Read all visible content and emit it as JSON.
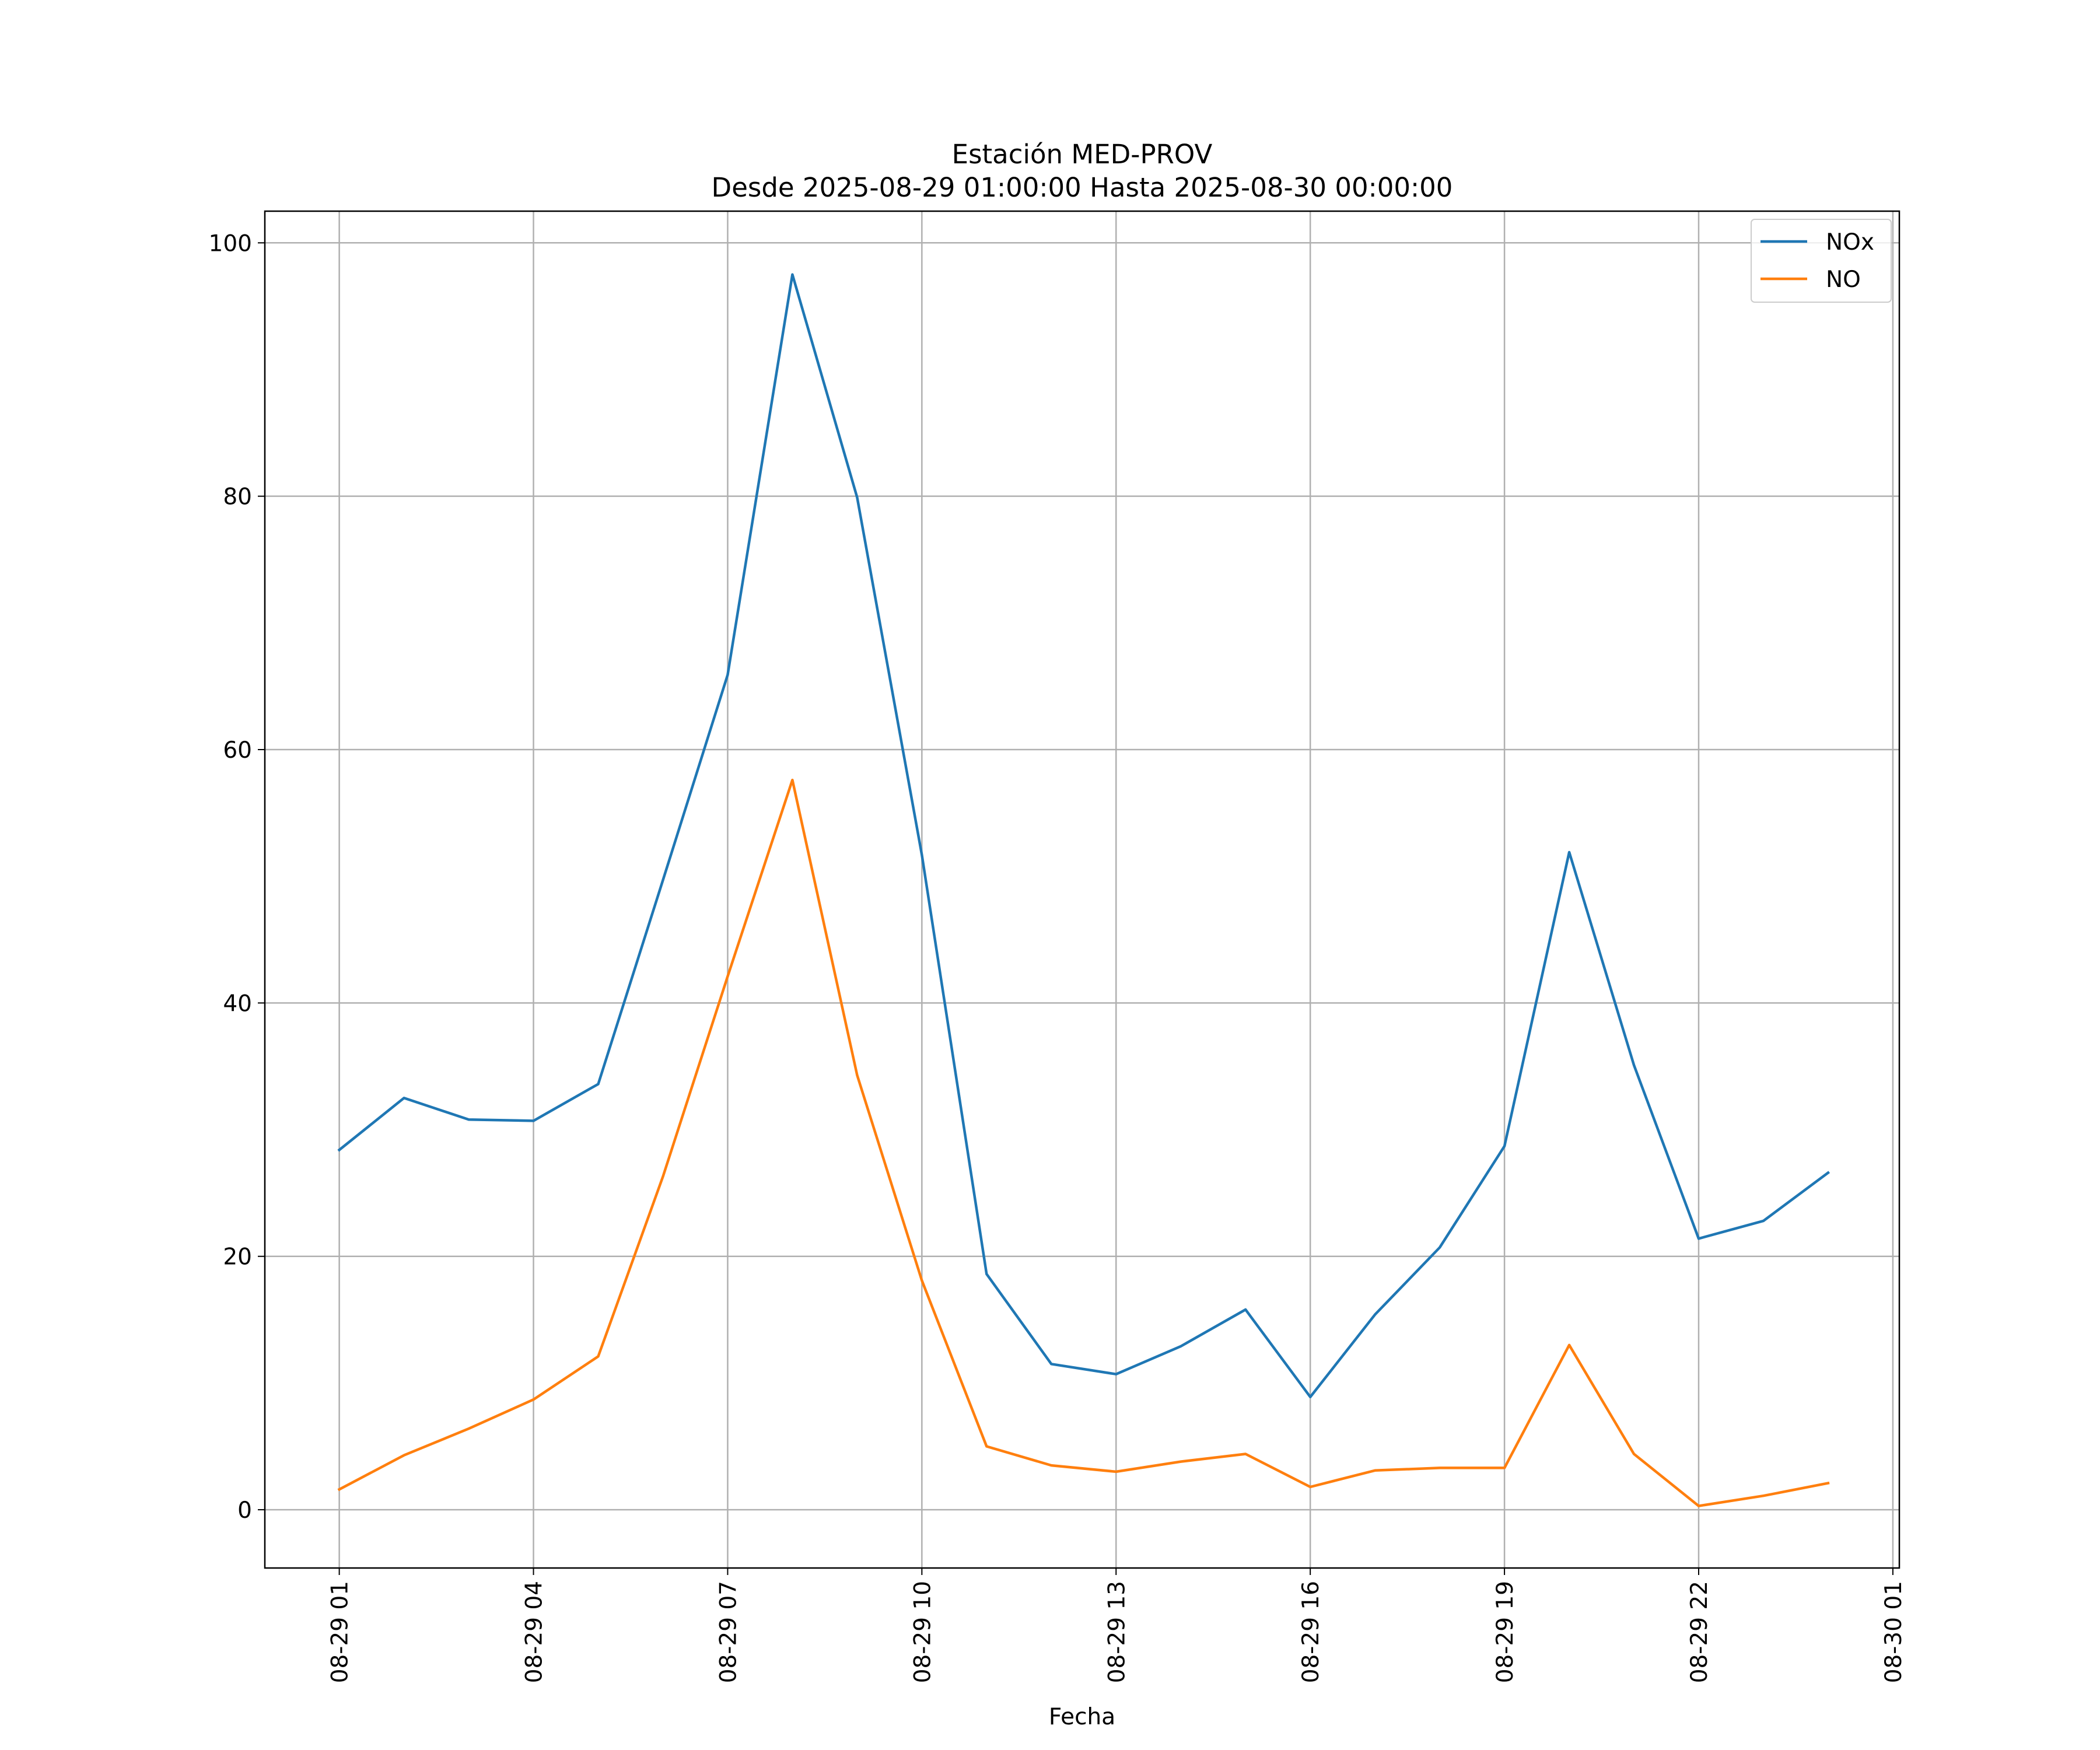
{
  "chart_data": {
    "type": "line",
    "title_line1": "Estación MED-PROV",
    "title_line2": "Desde 2025-08-29 01:00:00 Hasta 2025-08-30 00:00:00",
    "xlabel": "Fecha",
    "ylabel": "",
    "grid": true,
    "legend_position": "top-right",
    "x_hours": [
      1,
      2,
      3,
      4,
      5,
      6,
      7,
      8,
      9,
      10,
      11,
      12,
      13,
      14,
      15,
      16,
      17,
      18,
      19,
      20,
      21,
      22,
      23,
      24
    ],
    "xlim_hours": [
      -0.15,
      25.1
    ],
    "x_ticks": [
      {
        "hour": 1,
        "label": "08-29 01"
      },
      {
        "hour": 4,
        "label": "08-29 04"
      },
      {
        "hour": 7,
        "label": "08-29 07"
      },
      {
        "hour": 10,
        "label": "08-29 10"
      },
      {
        "hour": 13,
        "label": "08-29 13"
      },
      {
        "hour": 16,
        "label": "08-29 16"
      },
      {
        "hour": 19,
        "label": "08-29 19"
      },
      {
        "hour": 22,
        "label": "08-29 22"
      },
      {
        "hour": 25,
        "label": "08-30 01"
      }
    ],
    "ylim": [
      -4.6,
      102.5
    ],
    "y_ticks": [
      {
        "value": 0,
        "label": "0"
      },
      {
        "value": 20,
        "label": "20"
      },
      {
        "value": 40,
        "label": "40"
      },
      {
        "value": 60,
        "label": "60"
      },
      {
        "value": 80,
        "label": "80"
      },
      {
        "value": 100,
        "label": "100"
      }
    ],
    "series": [
      {
        "name": "NOx",
        "color": "#1f77b4",
        "values": [
          28.4,
          32.5,
          30.8,
          30.7,
          33.6,
          49.7,
          65.9,
          97.5,
          79.9,
          51.7,
          18.6,
          11.5,
          10.7,
          12.9,
          15.8,
          8.9,
          15.4,
          20.7,
          28.7,
          51.9,
          35.1,
          21.4,
          22.8,
          26.6
        ]
      },
      {
        "name": "NO",
        "color": "#ff7f0e",
        "values": [
          1.6,
          4.3,
          6.4,
          8.7,
          12.1,
          26.3,
          42.1,
          57.6,
          34.3,
          18.1,
          5.0,
          3.5,
          3.0,
          3.8,
          4.4,
          1.8,
          3.1,
          3.3,
          3.3,
          13.0,
          4.4,
          0.3,
          1.1,
          2.1
        ]
      }
    ]
  }
}
